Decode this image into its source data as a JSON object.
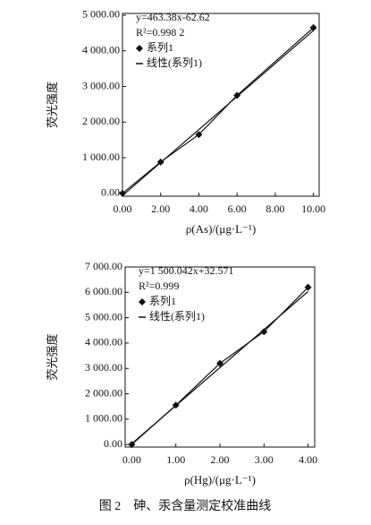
{
  "chart_data": [
    {
      "type": "line",
      "ylabel": "荧光强度",
      "xlabel": "ρ(As)/(μg·L⁻¹)",
      "annotations": [
        "y=463.38x-62.62",
        "R²=0.998 2"
      ],
      "xlim": [
        0,
        10.3
      ],
      "ylim": [
        -80,
        5050
      ],
      "xticks": [
        {
          "value": 0,
          "label": "0.00"
        },
        {
          "value": 2,
          "label": "2.00"
        },
        {
          "value": 4,
          "label": "4.00"
        },
        {
          "value": 6,
          "label": "6.00"
        },
        {
          "value": 8,
          "label": "8.00"
        },
        {
          "value": 10,
          "label": "10.00"
        }
      ],
      "yticks": [
        {
          "value": 0,
          "label": "0.00"
        },
        {
          "value": 1000,
          "label": "1 000.00"
        },
        {
          "value": 2000,
          "label": "2 000.00"
        },
        {
          "value": 3000,
          "label": "3 000.00"
        },
        {
          "value": 4000,
          "label": "4 000.00"
        },
        {
          "value": 5000,
          "label": "5 000.00"
        }
      ],
      "series": [
        {
          "name": "系列1",
          "marker": "diamond",
          "color": "#111111",
          "x": [
            0,
            2,
            4,
            6,
            10
          ],
          "values": [
            0,
            880,
            1650,
            2750,
            4650
          ]
        },
        {
          "name": "线性(系列1)",
          "marker": "line",
          "color": "#111111",
          "x": [
            0,
            10
          ],
          "values": [
            -62.62,
            4571.18
          ]
        }
      ]
    },
    {
      "type": "line",
      "ylabel": "荧光强度",
      "xlabel": "ρ(Hg)/(μg·L⁻¹)",
      "annotations": [
        "y=1 500.042x+32.571",
        "R²=0.999"
      ],
      "xlim": [
        -0.15,
        4.15
      ],
      "ylim": [
        -100,
        7000
      ],
      "xticks": [
        {
          "value": 0,
          "label": "0.00"
        },
        {
          "value": 1,
          "label": "1.00"
        },
        {
          "value": 2,
          "label": "2.00"
        },
        {
          "value": 3,
          "label": "3.00"
        },
        {
          "value": 4,
          "label": "4.00"
        }
      ],
      "yticks": [
        {
          "value": 0,
          "label": "0.00"
        },
        {
          "value": 1000,
          "label": "1 000.00"
        },
        {
          "value": 2000,
          "label": "2 000.00"
        },
        {
          "value": 3000,
          "label": "3 000.00"
        },
        {
          "value": 4000,
          "label": "4 000.00"
        },
        {
          "value": 5000,
          "label": "5 000.00"
        },
        {
          "value": 6000,
          "label": "6 000.00"
        },
        {
          "value": 7000,
          "label": "7 000.00"
        }
      ],
      "series": [
        {
          "name": "系列1",
          "marker": "diamond",
          "color": "#111111",
          "x": [
            0,
            1,
            2,
            3,
            4
          ],
          "values": [
            0,
            1550,
            3200,
            4450,
            6200
          ]
        },
        {
          "name": "线性(系列1)",
          "marker": "line",
          "color": "#111111",
          "x": [
            0,
            4
          ],
          "values": [
            32.571,
            6032.74
          ]
        }
      ]
    }
  ],
  "caption": "图 2　砷、汞含量测定校准曲线"
}
